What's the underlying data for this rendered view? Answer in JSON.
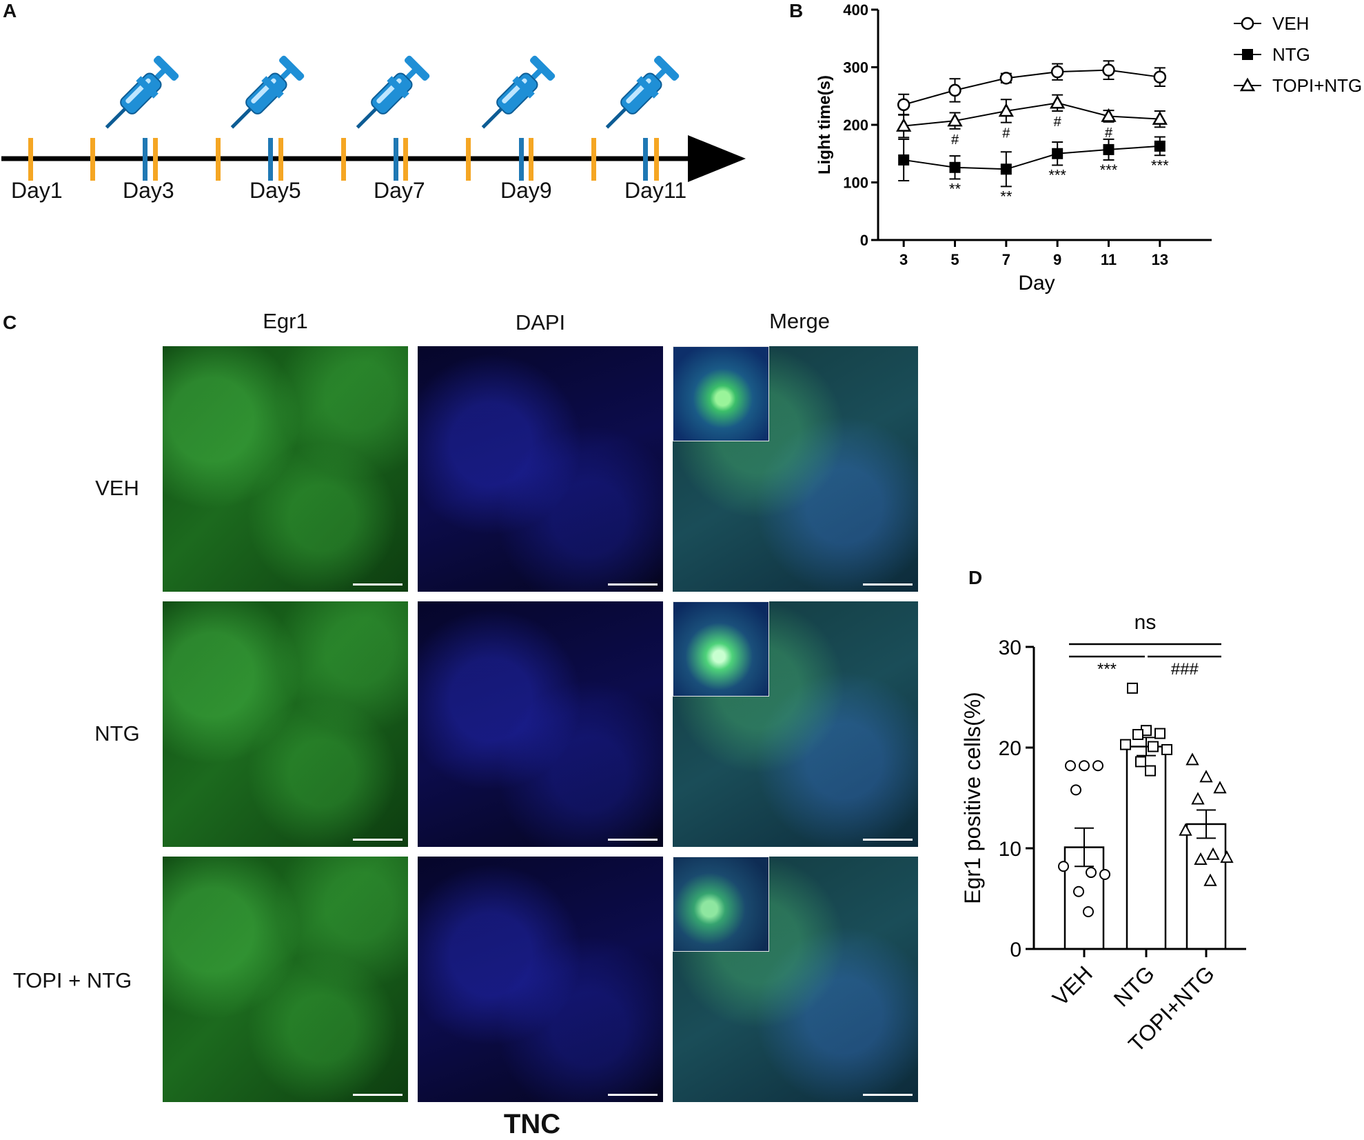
{
  "panel_labels": {
    "a": "A",
    "b": "B",
    "c": "C",
    "d": "D"
  },
  "timeline": {
    "days": [
      "Day1",
      "Day3",
      "Day5",
      "Day7",
      "Day9",
      "Day11"
    ],
    "colors": {
      "orange": "#f5a623",
      "blue": "#1f78b4",
      "arrow": "#000000",
      "syringe": "#1f8fd6"
    }
  },
  "imaging": {
    "columns": [
      "Egr1",
      "DAPI",
      "Merge"
    ],
    "rows": [
      "VEH",
      "NTG",
      "TOPI + NTG"
    ],
    "footer": "TNC"
  },
  "chart_data": [
    {
      "type": "line",
      "panel": "B",
      "xlabel": "Day",
      "ylabel": "Light time(s)",
      "x": [
        3,
        5,
        7,
        9,
        11,
        13
      ],
      "xticks": [
        "3",
        "5",
        "7",
        "9",
        "11",
        "13"
      ],
      "ylim": [
        0,
        400
      ],
      "yticks": [
        "0",
        "100",
        "200",
        "300",
        "400"
      ],
      "legend_position": "top-right",
      "series": [
        {
          "name": "VEH",
          "marker": "open-circle",
          "values": [
            235,
            260,
            281,
            292,
            295,
            283
          ],
          "err": [
            18,
            20,
            8,
            14,
            16,
            16
          ]
        },
        {
          "name": "NTG",
          "marker": "filled-square",
          "values": [
            139,
            126,
            123,
            150,
            157,
            163
          ],
          "err": [
            36,
            20,
            30,
            20,
            18,
            16
          ]
        },
        {
          "name": "TOPI+NTG",
          "marker": "open-triangle",
          "values": [
            198,
            207,
            224,
            238,
            215,
            210
          ],
          "err": [
            20,
            14,
            20,
            14,
            10,
            14
          ]
        }
      ],
      "annotations": [
        {
          "x": 5,
          "y_anchor": "below-NTG",
          "text": "**"
        },
        {
          "x": 7,
          "y_anchor": "below-NTG",
          "text": "**"
        },
        {
          "x": 9,
          "y_anchor": "below-NTG",
          "text": "***"
        },
        {
          "x": 11,
          "y_anchor": "below-NTG",
          "text": "***"
        },
        {
          "x": 13,
          "y_anchor": "below-NTG",
          "text": "***"
        },
        {
          "x": 5,
          "y_anchor": "below-TOPI",
          "text": "#"
        },
        {
          "x": 7,
          "y_anchor": "below-TOPI",
          "text": "#"
        },
        {
          "x": 9,
          "y_anchor": "below-TOPI",
          "text": "#"
        },
        {
          "x": 11,
          "y_anchor": "below-TOPI",
          "text": "#"
        }
      ]
    },
    {
      "type": "bar",
      "panel": "D",
      "ylabel": "Egr1 positive cells(%)",
      "categories": [
        "VEH",
        "NTG",
        "TOPI+NTG"
      ],
      "values": [
        10.1,
        20.1,
        12.4
      ],
      "err": [
        1.9,
        0.9,
        1.4
      ],
      "ylim": [
        0,
        30
      ],
      "yticks": [
        "0",
        "10",
        "20",
        "30"
      ],
      "points": [
        [
          18.2,
          18.2,
          18.2,
          15.8,
          8.2,
          7.6,
          7.4,
          5.7,
          3.7
        ],
        [
          25.9,
          21.7,
          21.4,
          21.3,
          20.3,
          20.1,
          19.8,
          18.6,
          17.7
        ],
        [
          18.8,
          17.1,
          16.0,
          14.9,
          11.8,
          9.4,
          9.1,
          8.9,
          6.8
        ]
      ],
      "markers": [
        "open-circle",
        "open-square",
        "open-triangle"
      ],
      "significance": [
        {
          "from": "VEH",
          "to": "TOPI+NTG",
          "text": "ns",
          "level": "top"
        },
        {
          "from": "VEH",
          "to": "NTG",
          "text": "***",
          "level": "lower"
        },
        {
          "from": "NTG",
          "to": "TOPI+NTG",
          "text": "###",
          "level": "lower"
        }
      ]
    }
  ]
}
